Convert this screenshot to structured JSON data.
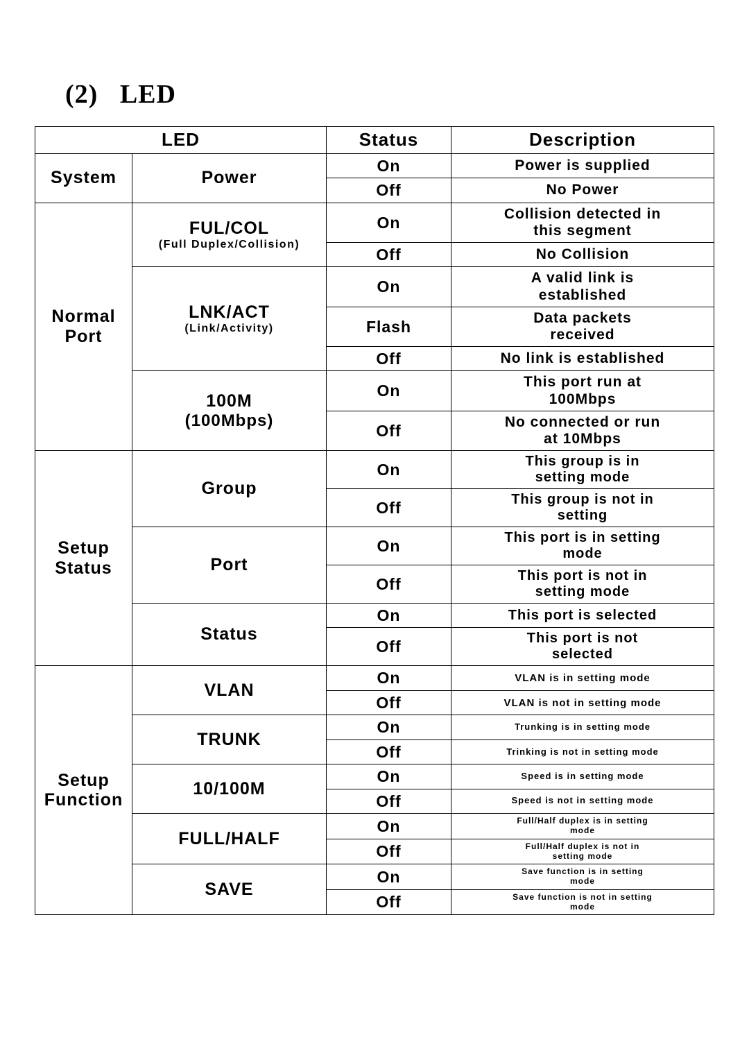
{
  "heading_prefix": "(2)",
  "heading_text": "LED",
  "headers": {
    "led": "LED",
    "status": "Status",
    "description": "Description"
  },
  "table": {
    "system": {
      "cat": "System",
      "leds": [
        {
          "name": "Power",
          "rows": [
            {
              "status": "On",
              "desc": "Power is supplied",
              "cls": "desc-lg"
            },
            {
              "status": "Off",
              "desc": "No Power",
              "cls": "desc-lg"
            }
          ]
        }
      ]
    },
    "normal_port": {
      "cat": "Normal\nPort",
      "leds": [
        {
          "name": "FUL/COL",
          "sub": "(Full Duplex/Collision)",
          "rows": [
            {
              "status": "On",
              "desc": "Collision detected in\nthis segment",
              "cls": "desc-lg"
            },
            {
              "status": "Off",
              "desc": "No Collision",
              "cls": "desc-lg"
            }
          ]
        },
        {
          "name": "LNK/ACT",
          "sub": "(Link/Activity)",
          "rows": [
            {
              "status": "On",
              "desc": "A valid link is\nestablished",
              "cls": "desc-lg"
            },
            {
              "status": "Flash",
              "desc": "Data packets\nreceived",
              "cls": "desc-lg"
            },
            {
              "status": "Off",
              "desc": "No link is established",
              "cls": "desc-lg"
            }
          ]
        },
        {
          "name": "100M",
          "sub": "(100Mbps)",
          "sub_big": true,
          "rows": [
            {
              "status": "On",
              "desc": "This port run at\n100Mbps",
              "cls": "desc-lg"
            },
            {
              "status": "Off",
              "desc": "No connected or run\nat 10Mbps",
              "cls": "desc-lg"
            }
          ]
        }
      ]
    },
    "setup_status": {
      "cat": "Setup\nStatus",
      "leds": [
        {
          "name": "Group",
          "rows": [
            {
              "status": "On",
              "desc": "This group is in\nsetting mode",
              "cls": "desc-md"
            },
            {
              "status": "Off",
              "desc": "This group is not in\nsetting",
              "cls": "desc-md"
            }
          ]
        },
        {
          "name": "Port",
          "rows": [
            {
              "status": "On",
              "desc": "This port is in setting\nmode",
              "cls": "desc-md"
            },
            {
              "status": "Off",
              "desc": "This port is not in\nsetting mode",
              "cls": "desc-md"
            }
          ]
        },
        {
          "name": "Status",
          "rows": [
            {
              "status": "On",
              "desc": "This port is selected",
              "cls": "desc-md"
            },
            {
              "status": "Off",
              "desc": "This port is not\nselected",
              "cls": "desc-md"
            }
          ]
        }
      ]
    },
    "setup_function": {
      "cat": "Setup\nFunction",
      "leds": [
        {
          "name": "VLAN",
          "rows": [
            {
              "status": "On",
              "desc": "VLAN is in setting mode",
              "cls": "desc-sm"
            },
            {
              "status": "Off",
              "desc": "VLAN is not in setting mode",
              "cls": "desc-sm"
            }
          ]
        },
        {
          "name": "TRUNK",
          "rows": [
            {
              "status": "On",
              "desc": "Trunking  is in setting mode",
              "cls": "desc-xs"
            },
            {
              "status": "Off",
              "desc": "Trinking is not in setting mode",
              "cls": "desc-xs"
            }
          ]
        },
        {
          "name": "10/100M",
          "rows": [
            {
              "status": "On",
              "desc": "Speed  is in setting mode",
              "cls": "desc-xs"
            },
            {
              "status": "Off",
              "desc": "Speed  is not in setting mode",
              "cls": "desc-xs"
            }
          ]
        },
        {
          "name": "FULL/HALF",
          "rows": [
            {
              "status": "On",
              "desc": "Full/Half duplex  is in setting\nmode",
              "cls": "desc-xxs"
            },
            {
              "status": "Off",
              "desc": "Full/Half duplex  is not in\nsetting mode",
              "cls": "desc-xxs"
            }
          ]
        },
        {
          "name": "SAVE",
          "rows": [
            {
              "status": "On",
              "desc": "Save function   is in setting\nmode",
              "cls": "desc-xxs"
            },
            {
              "status": "Off",
              "desc": "Save function   is not in setting\nmode",
              "cls": "desc-xxs"
            }
          ]
        }
      ]
    }
  }
}
